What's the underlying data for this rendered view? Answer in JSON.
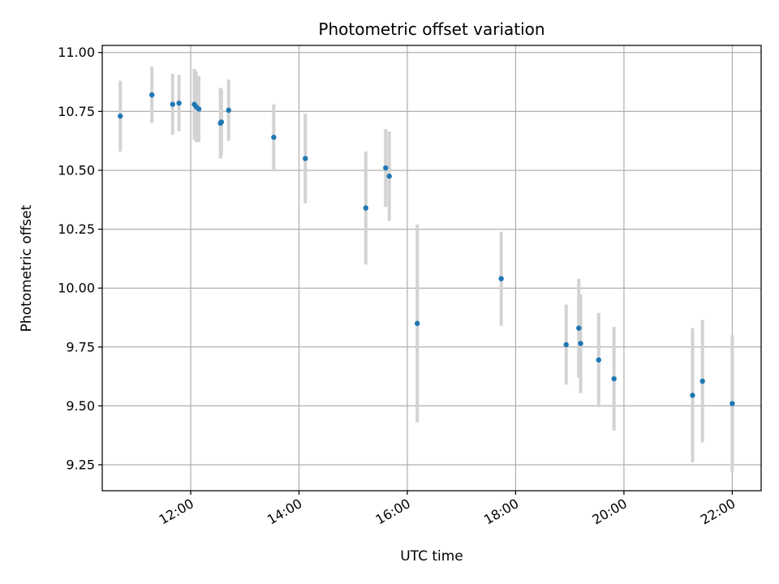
{
  "chart_data": {
    "type": "scatter",
    "title": "Photometric offset variation",
    "xlabel": "UTC time",
    "ylabel": "Photometric offset",
    "xlim": [
      "10:22",
      "22:32"
    ],
    "ylim": [
      9.14,
      11.03
    ],
    "grid": true,
    "x_ticks": [
      "12:00",
      "14:00",
      "16:00",
      "18:00",
      "20:00",
      "22:00"
    ],
    "y_ticks": [
      "9.25",
      "9.50",
      "9.75",
      "10.00",
      "10.25",
      "10.50",
      "10.75",
      "11.00"
    ],
    "colors": {
      "point": "#1f77b4",
      "errorbar": "#d3d3d3",
      "grid": "#b0b0b0"
    },
    "series": [
      {
        "points": [
          {
            "t": "10:42",
            "y": 10.73,
            "err": 0.15
          },
          {
            "t": "11:17",
            "y": 10.82,
            "err": 0.12
          },
          {
            "t": "11:40",
            "y": 10.78,
            "err": 0.13
          },
          {
            "t": "11:47",
            "y": 10.785,
            "err": 0.12
          },
          {
            "t": "12:04",
            "y": 10.78,
            "err": 0.15
          },
          {
            "t": "12:06",
            "y": 10.77,
            "err": 0.15
          },
          {
            "t": "12:09",
            "y": 10.76,
            "err": 0.14
          },
          {
            "t": "12:33",
            "y": 10.7,
            "err": 0.15
          },
          {
            "t": "12:34",
            "y": 10.705,
            "err": 0.14
          },
          {
            "t": "12:42",
            "y": 10.755,
            "err": 0.13
          },
          {
            "t": "13:32",
            "y": 10.64,
            "err": 0.14
          },
          {
            "t": "14:07",
            "y": 10.55,
            "err": 0.19
          },
          {
            "t": "15:14",
            "y": 10.34,
            "err": 0.24
          },
          {
            "t": "15:36",
            "y": 10.51,
            "err": 0.165
          },
          {
            "t": "15:40",
            "y": 10.475,
            "err": 0.19
          },
          {
            "t": "16:11",
            "y": 9.85,
            "err": 0.42
          },
          {
            "t": "17:44",
            "y": 10.04,
            "err": 0.2
          },
          {
            "t": "18:56",
            "y": 9.76,
            "err": 0.17
          },
          {
            "t": "19:10",
            "y": 9.83,
            "err": 0.21
          },
          {
            "t": "19:12",
            "y": 9.765,
            "err": 0.21
          },
          {
            "t": "19:32",
            "y": 9.695,
            "err": 0.2
          },
          {
            "t": "19:49",
            "y": 9.615,
            "err": 0.22
          },
          {
            "t": "21:16",
            "y": 9.545,
            "err": 0.285
          },
          {
            "t": "21:27",
            "y": 9.605,
            "err": 0.26
          },
          {
            "t": "22:00",
            "y": 9.51,
            "err": 0.29
          }
        ]
      }
    ]
  }
}
